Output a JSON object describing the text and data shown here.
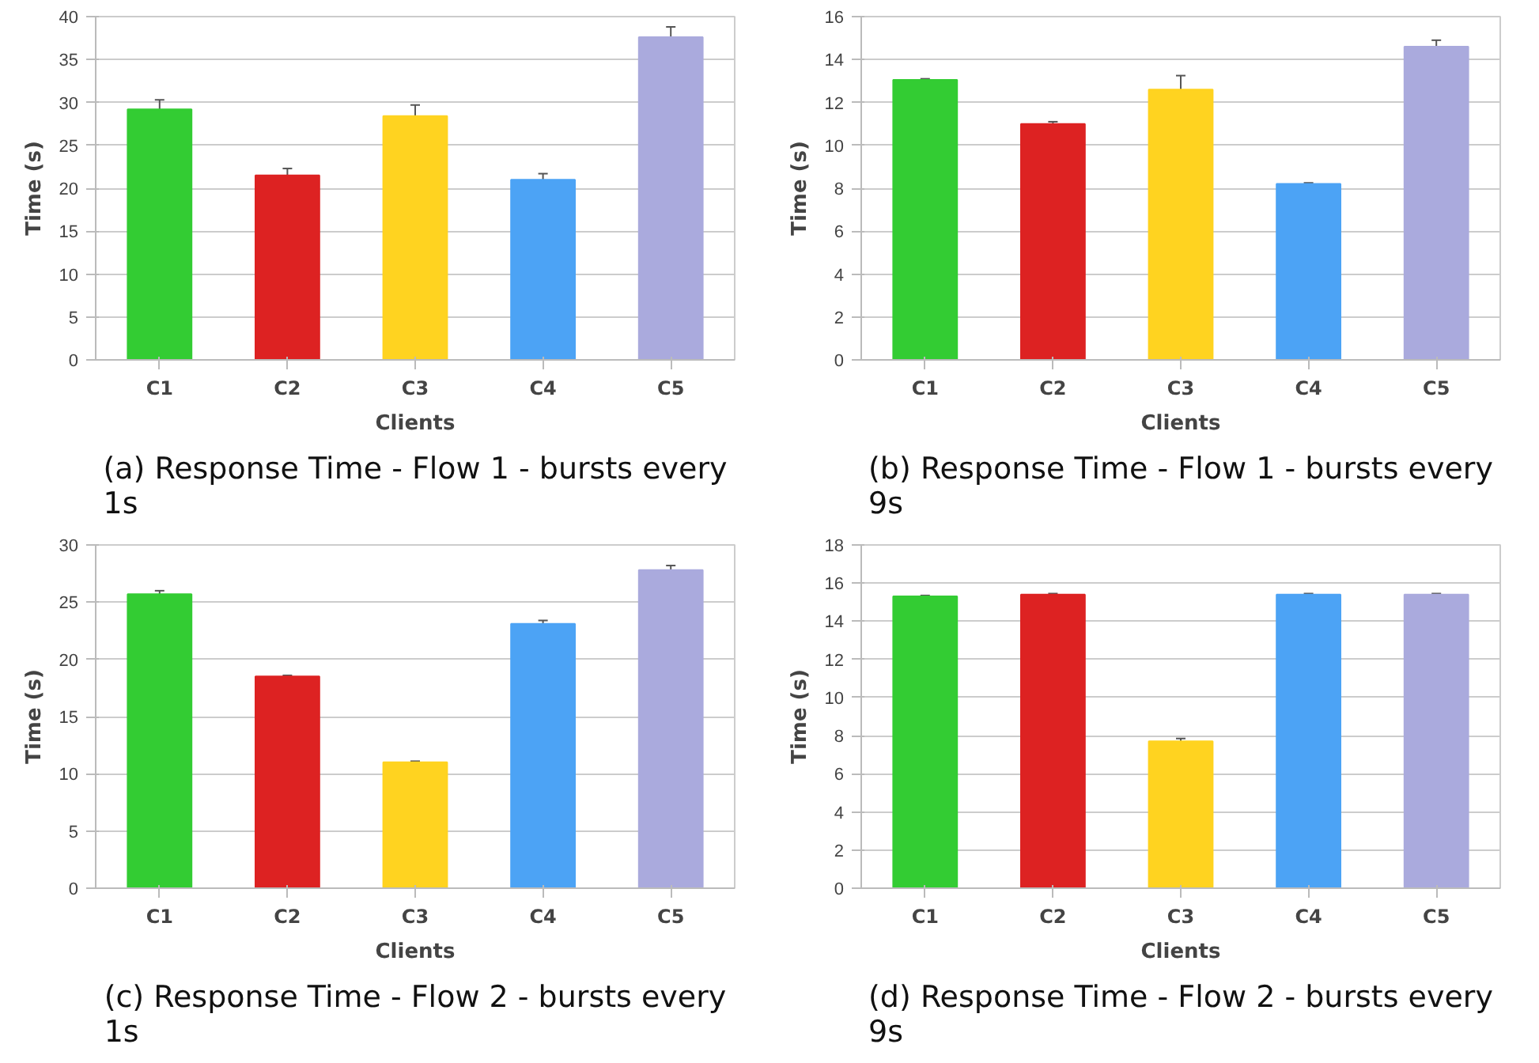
{
  "chart_data": [
    {
      "type": "bar",
      "title": "(a) Response Time - Flow 1 - bursts every 1s",
      "xlabel": "Clients",
      "ylabel": "Time (s)",
      "categories": [
        "C1",
        "C2",
        "C3",
        "C4",
        "C5"
      ],
      "colors": [
        "#33cc33",
        "#dd2222",
        "#ffd320",
        "#4ca3f5",
        "#aaaadd"
      ],
      "values": [
        29.2,
        21.5,
        28.4,
        21.0,
        37.6
      ],
      "errors": [
        1.1,
        0.8,
        1.3,
        0.7,
        1.2
      ],
      "ylim": [
        0,
        40
      ],
      "yticks": [
        0,
        5,
        10,
        15,
        20,
        25,
        30,
        35,
        40
      ],
      "grid": "y"
    },
    {
      "type": "bar",
      "title": "(b) Response Time - Flow 1 - bursts every 9s",
      "xlabel": "Clients",
      "ylabel": "Time (s)",
      "categories": [
        "C1",
        "C2",
        "C3",
        "C4",
        "C5"
      ],
      "colors": [
        "#33cc33",
        "#dd2222",
        "#ffd320",
        "#4ca3f5",
        "#aaaadd"
      ],
      "values": [
        13.05,
        11.0,
        12.6,
        8.2,
        14.6
      ],
      "errors": [
        0.05,
        0.1,
        0.65,
        0.05,
        0.3
      ],
      "ylim": [
        0,
        16
      ],
      "yticks": [
        0,
        2,
        4,
        6,
        8,
        10,
        12,
        14,
        16
      ],
      "grid": "y"
    },
    {
      "type": "bar",
      "title": "(c) Response Time - Flow 2 - bursts every 1s",
      "xlabel": "Clients",
      "ylabel": "Time (s)",
      "categories": [
        "C1",
        "C2",
        "C3",
        "C4",
        "C5"
      ],
      "colors": [
        "#33cc33",
        "#dd2222",
        "#ffd320",
        "#4ca3f5",
        "#aaaadd"
      ],
      "values": [
        25.7,
        18.5,
        11.0,
        23.1,
        27.8
      ],
      "errors": [
        0.3,
        0.1,
        0.1,
        0.3,
        0.4
      ],
      "ylim": [
        0,
        30
      ],
      "yticks": [
        0,
        5,
        10,
        15,
        20,
        25,
        30
      ],
      "grid": "y"
    },
    {
      "type": "bar",
      "title": "(d) Response Time - Flow 2 - bursts every 9s",
      "xlabel": "Clients",
      "ylabel": "Time (s)",
      "categories": [
        "C1",
        "C2",
        "C3",
        "C4",
        "C5"
      ],
      "colors": [
        "#33cc33",
        "#dd2222",
        "#ffd320",
        "#4ca3f5",
        "#aaaadd"
      ],
      "values": [
        15.3,
        15.4,
        7.7,
        15.4,
        15.4
      ],
      "errors": [
        0.05,
        0.05,
        0.15,
        0.05,
        0.05
      ],
      "ylim": [
        0,
        18
      ],
      "yticks": [
        0,
        2,
        4,
        6,
        8,
        10,
        12,
        14,
        16,
        18
      ],
      "grid": "y"
    }
  ]
}
